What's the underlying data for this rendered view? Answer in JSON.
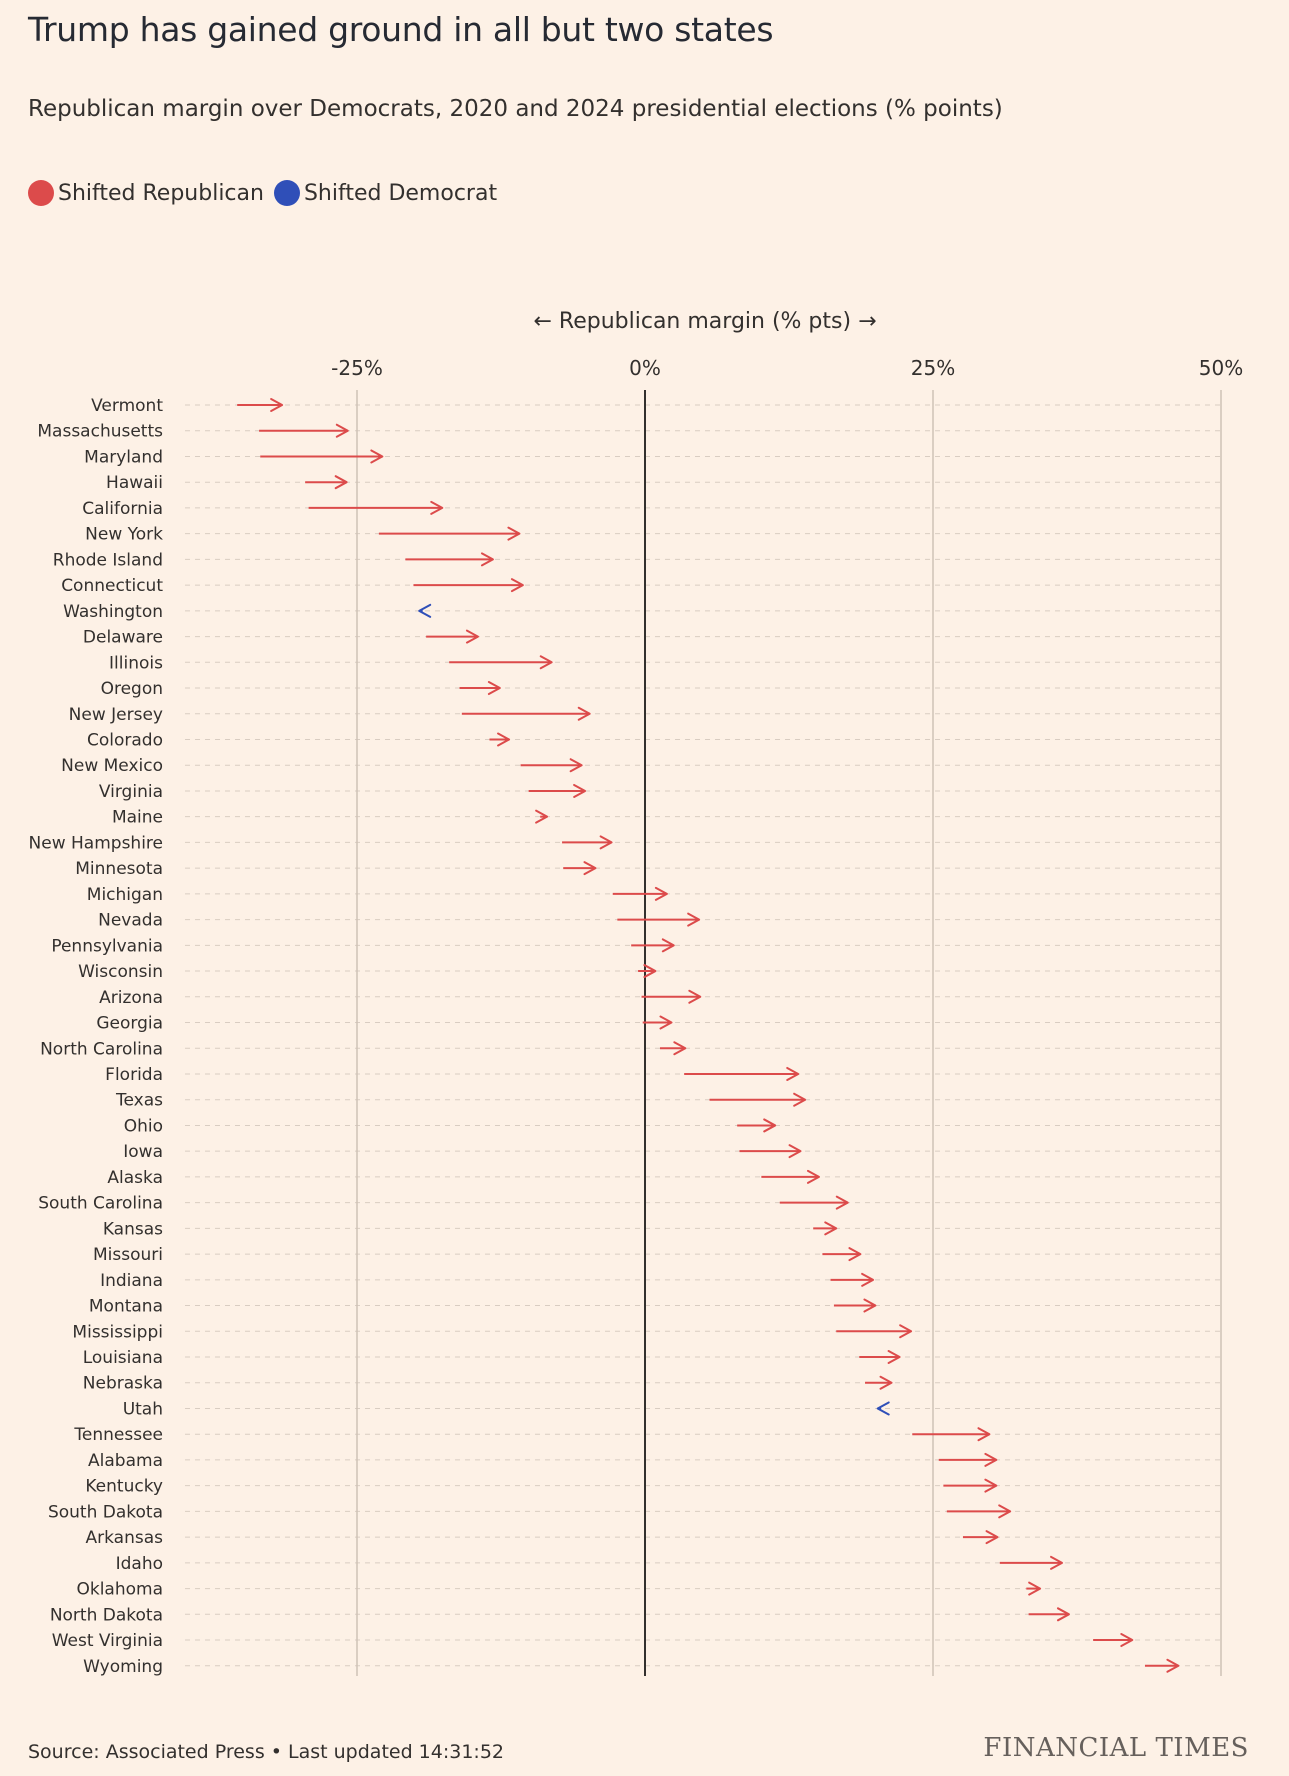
{
  "title": "Trump has gained ground in all but two states",
  "subtitle": "Republican margin over Democrats, 2020 and 2024 presidential elections (% points)",
  "legend": {
    "rep_label": "Shifted Republican",
    "dem_label": "Shifted Democrat",
    "rep_color": "#dc4b4b",
    "dem_color": "#2f4fb8"
  },
  "source": "Source: Associated Press • Last updated 14:31:52",
  "logo": "FINANCIAL TIMES",
  "chart_data": {
    "type": "arrow",
    "axis_label": "← Republican margin (% pts) →",
    "xlim": [
      -40,
      50
    ],
    "ticks": [
      {
        "value": -25,
        "label": "-25%"
      },
      {
        "value": 0,
        "label": "0%"
      },
      {
        "value": 25,
        "label": "25%"
      },
      {
        "value": 50,
        "label": "50%"
      }
    ],
    "series_fields": [
      "state",
      "margin_2020",
      "margin_2024"
    ],
    "states": [
      {
        "state": "Vermont",
        "from": -35.4,
        "to": -31.5
      },
      {
        "state": "Massachusetts",
        "from": -33.5,
        "to": -25.8
      },
      {
        "state": "Maryland",
        "from": -33.4,
        "to": -22.8
      },
      {
        "state": "Hawaii",
        "from": -29.5,
        "to": -25.9
      },
      {
        "state": "California",
        "from": -29.2,
        "to": -17.6
      },
      {
        "state": "New York",
        "from": -23.1,
        "to": -10.9
      },
      {
        "state": "Rhode Island",
        "from": -20.8,
        "to": -13.2
      },
      {
        "state": "Connecticut",
        "from": -20.1,
        "to": -10.6
      },
      {
        "state": "Washington",
        "from": -19.3,
        "to": -19.6
      },
      {
        "state": "Delaware",
        "from": -19.0,
        "to": -14.5
      },
      {
        "state": "Illinois",
        "from": -17.0,
        "to": -8.1
      },
      {
        "state": "Oregon",
        "from": -16.1,
        "to": -12.6
      },
      {
        "state": "New Jersey",
        "from": -15.9,
        "to": -4.8
      },
      {
        "state": "Colorado",
        "from": -13.5,
        "to": -11.8
      },
      {
        "state": "New Mexico",
        "from": -10.8,
        "to": -5.5
      },
      {
        "state": "Virginia",
        "from": -10.1,
        "to": -5.2
      },
      {
        "state": "Maine",
        "from": -9.1,
        "to": -8.5
      },
      {
        "state": "New Hampshire",
        "from": -7.2,
        "to": -2.9
      },
      {
        "state": "Minnesota",
        "from": -7.1,
        "to": -4.3
      },
      {
        "state": "Michigan",
        "from": -2.8,
        "to": 1.9
      },
      {
        "state": "Nevada",
        "from": -2.4,
        "to": 4.7
      },
      {
        "state": "Pennsylvania",
        "from": -1.2,
        "to": 2.5
      },
      {
        "state": "Wisconsin",
        "from": -0.6,
        "to": 0.9
      },
      {
        "state": "Arizona",
        "from": -0.3,
        "to": 4.8
      },
      {
        "state": "Georgia",
        "from": -0.2,
        "to": 2.3
      },
      {
        "state": "North Carolina",
        "from": 1.3,
        "to": 3.5
      },
      {
        "state": "Florida",
        "from": 3.4,
        "to": 13.3
      },
      {
        "state": "Texas",
        "from": 5.6,
        "to": 13.9
      },
      {
        "state": "Ohio",
        "from": 8.0,
        "to": 11.3
      },
      {
        "state": "Iowa",
        "from": 8.2,
        "to": 13.5
      },
      {
        "state": "Alaska",
        "from": 10.1,
        "to": 15.1
      },
      {
        "state": "South Carolina",
        "from": 11.7,
        "to": 17.6
      },
      {
        "state": "Kansas",
        "from": 14.6,
        "to": 16.6
      },
      {
        "state": "Missouri",
        "from": 15.4,
        "to": 18.7
      },
      {
        "state": "Indiana",
        "from": 16.1,
        "to": 19.8
      },
      {
        "state": "Montana",
        "from": 16.4,
        "to": 20.0
      },
      {
        "state": "Mississippi",
        "from": 16.6,
        "to": 23.1
      },
      {
        "state": "Louisiana",
        "from": 18.6,
        "to": 22.1
      },
      {
        "state": "Nebraska",
        "from": 19.1,
        "to": 21.4
      },
      {
        "state": "Utah",
        "from": 20.5,
        "to": 20.2
      },
      {
        "state": "Tennessee",
        "from": 23.2,
        "to": 29.9
      },
      {
        "state": "Alabama",
        "from": 25.5,
        "to": 30.5
      },
      {
        "state": "Kentucky",
        "from": 25.9,
        "to": 30.5
      },
      {
        "state": "South Dakota",
        "from": 26.2,
        "to": 31.7
      },
      {
        "state": "Arkansas",
        "from": 27.6,
        "to": 30.6
      },
      {
        "state": "Idaho",
        "from": 30.8,
        "to": 36.2
      },
      {
        "state": "Oklahoma",
        "from": 33.1,
        "to": 34.3
      },
      {
        "state": "North Dakota",
        "from": 33.3,
        "to": 36.8
      },
      {
        "state": "West Virginia",
        "from": 38.9,
        "to": 42.3
      },
      {
        "state": "Wyoming",
        "from": 43.4,
        "to": 46.3
      }
    ]
  }
}
